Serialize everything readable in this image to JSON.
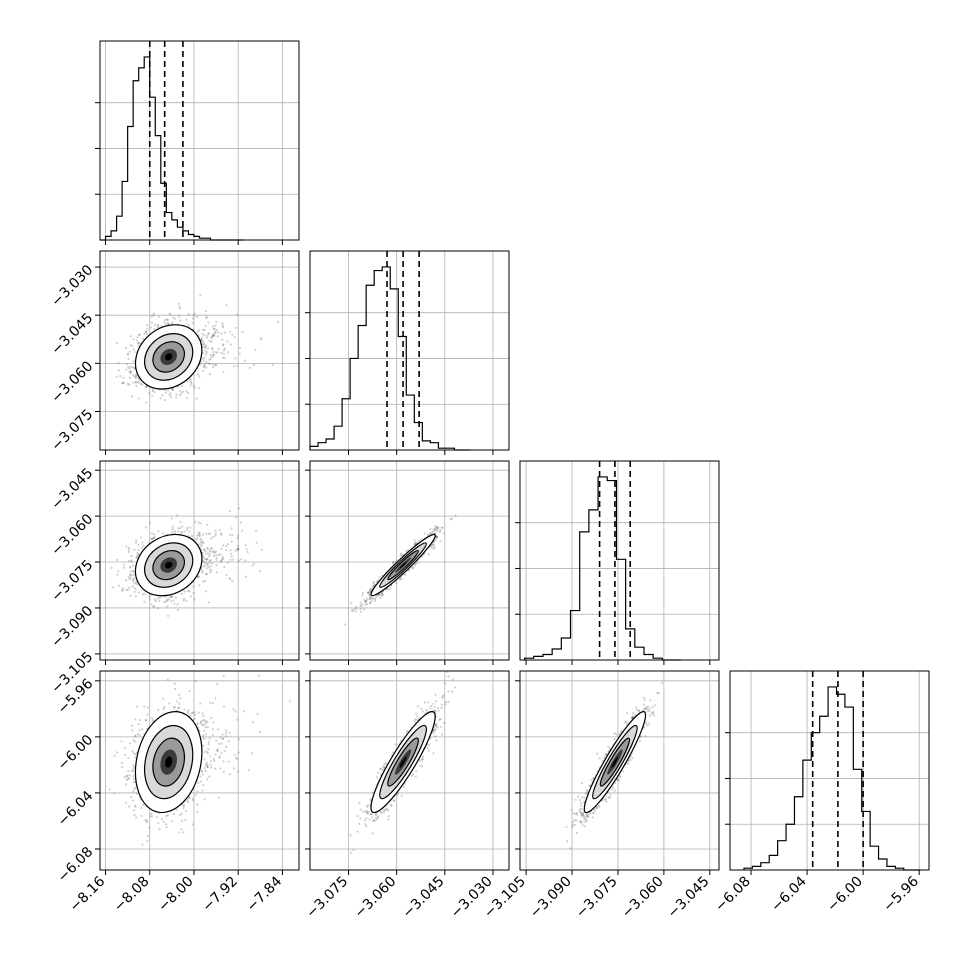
{
  "chart_data": {
    "type": "corner",
    "title": "",
    "parameters": [
      {
        "range": [
          -8.17,
          -7.81
        ],
        "median": -8.053,
        "q16": -8.08,
        "q84": -8.02,
        "ticks": [
          -8.16,
          -8.08,
          -8.0,
          -7.92,
          -7.84
        ],
        "tick_labels": [
          "−8.16",
          "−8.08",
          "−8.00",
          "−7.92",
          "−7.84"
        ]
      },
      {
        "range": [
          -3.087,
          -3.025
        ],
        "median": -3.058,
        "q16": -3.063,
        "q84": -3.053,
        "ticks": [
          -3.03,
          -3.045,
          -3.06,
          -3.075
        ],
        "tick_labels": [
          "−3.030",
          "−3.045",
          "−3.060",
          "−3.075"
        ]
      },
      {
        "range": [
          -3.107,
          -3.042
        ],
        "median": -3.076,
        "q16": -3.081,
        "q84": -3.071,
        "ticks": [
          -3.045,
          -3.06,
          -3.075,
          -3.09,
          -3.105
        ],
        "tick_labels": [
          "−3.045",
          "−3.060",
          "−3.075",
          "−3.090",
          "−3.105"
        ]
      },
      {
        "range": [
          -6.095,
          -5.953
        ],
        "median": -6.018,
        "q16": -6.036,
        "q84": -6.0,
        "ticks": [
          -5.96,
          -6.0,
          -6.04,
          -6.08
        ],
        "tick_labels": [
          "−5.96",
          "−6.00",
          "−6.04",
          "−6.08"
        ]
      }
    ],
    "histograms": [
      {
        "edges": [
          -8.17,
          -8.16,
          -8.15,
          -8.14,
          -8.13,
          -8.12,
          -8.11,
          -8.1,
          -8.09,
          -8.08,
          -8.07,
          -8.06,
          -8.05,
          -8.04,
          -8.03,
          -8.02,
          -8.01,
          -8.0,
          -7.99,
          -7.98,
          -7.97,
          -7.96,
          -7.95,
          -7.94,
          -7.93,
          -7.92,
          -7.91
        ],
        "counts": [
          0,
          0.02,
          0.05,
          0.13,
          0.32,
          0.62,
          0.87,
          0.94,
          1.0,
          0.78,
          0.57,
          0.31,
          0.15,
          0.11,
          0.07,
          0.05,
          0.03,
          0.02,
          0.01,
          0.01,
          0,
          0,
          0,
          0,
          0,
          0
        ]
      },
      {
        "edges": [
          -3.087,
          -3.0845,
          -3.082,
          -3.0795,
          -3.077,
          -3.0745,
          -3.072,
          -3.0695,
          -3.067,
          -3.0645,
          -3.062,
          -3.0595,
          -3.057,
          -3.0545,
          -3.052,
          -3.0495,
          -3.047,
          -3.0445,
          -3.042,
          -3.0395,
          -3.037
        ],
        "counts": [
          0.02,
          0.04,
          0.06,
          0.13,
          0.28,
          0.5,
          0.68,
          0.9,
          0.98,
          1.0,
          0.88,
          0.62,
          0.3,
          0.15,
          0.05,
          0.04,
          0.01,
          0.01,
          0,
          0
        ]
      },
      {
        "edges": [
          -3.1055,
          -3.1025,
          -3.0995,
          -3.0965,
          -3.0935,
          -3.0905,
          -3.0875,
          -3.0845,
          -3.0815,
          -3.0785,
          -3.0755,
          -3.0725,
          -3.0695,
          -3.0665,
          -3.0635,
          -3.0605,
          -3.0575,
          -3.0545
        ],
        "counts": [
          0.01,
          0.02,
          0.03,
          0.06,
          0.12,
          0.27,
          0.7,
          0.82,
          1.0,
          0.98,
          0.55,
          0.17,
          0.07,
          0.03,
          0.01,
          0,
          0
        ]
      },
      {
        "edges": [
          -6.085,
          -6.079,
          -6.073,
          -6.067,
          -6.061,
          -6.055,
          -6.049,
          -6.043,
          -6.037,
          -6.031,
          -6.025,
          -6.019,
          -6.013,
          -6.007,
          -6.001,
          -5.995,
          -5.989,
          -5.983,
          -5.977,
          -5.971,
          -5.965,
          -5.959
        ],
        "counts": [
          0.01,
          0.02,
          0.04,
          0.08,
          0.16,
          0.25,
          0.4,
          0.6,
          0.75,
          0.84,
          1.0,
          0.96,
          0.89,
          0.55,
          0.32,
          0.13,
          0.06,
          0.02,
          0.01,
          0,
          0
        ]
      }
    ],
    "correlations": {
      "1_0": 0.2,
      "2_0": 0.2,
      "2_1": 0.96,
      "3_0": 0.2,
      "3_1": 0.9,
      "3_2": 0.93
    }
  }
}
